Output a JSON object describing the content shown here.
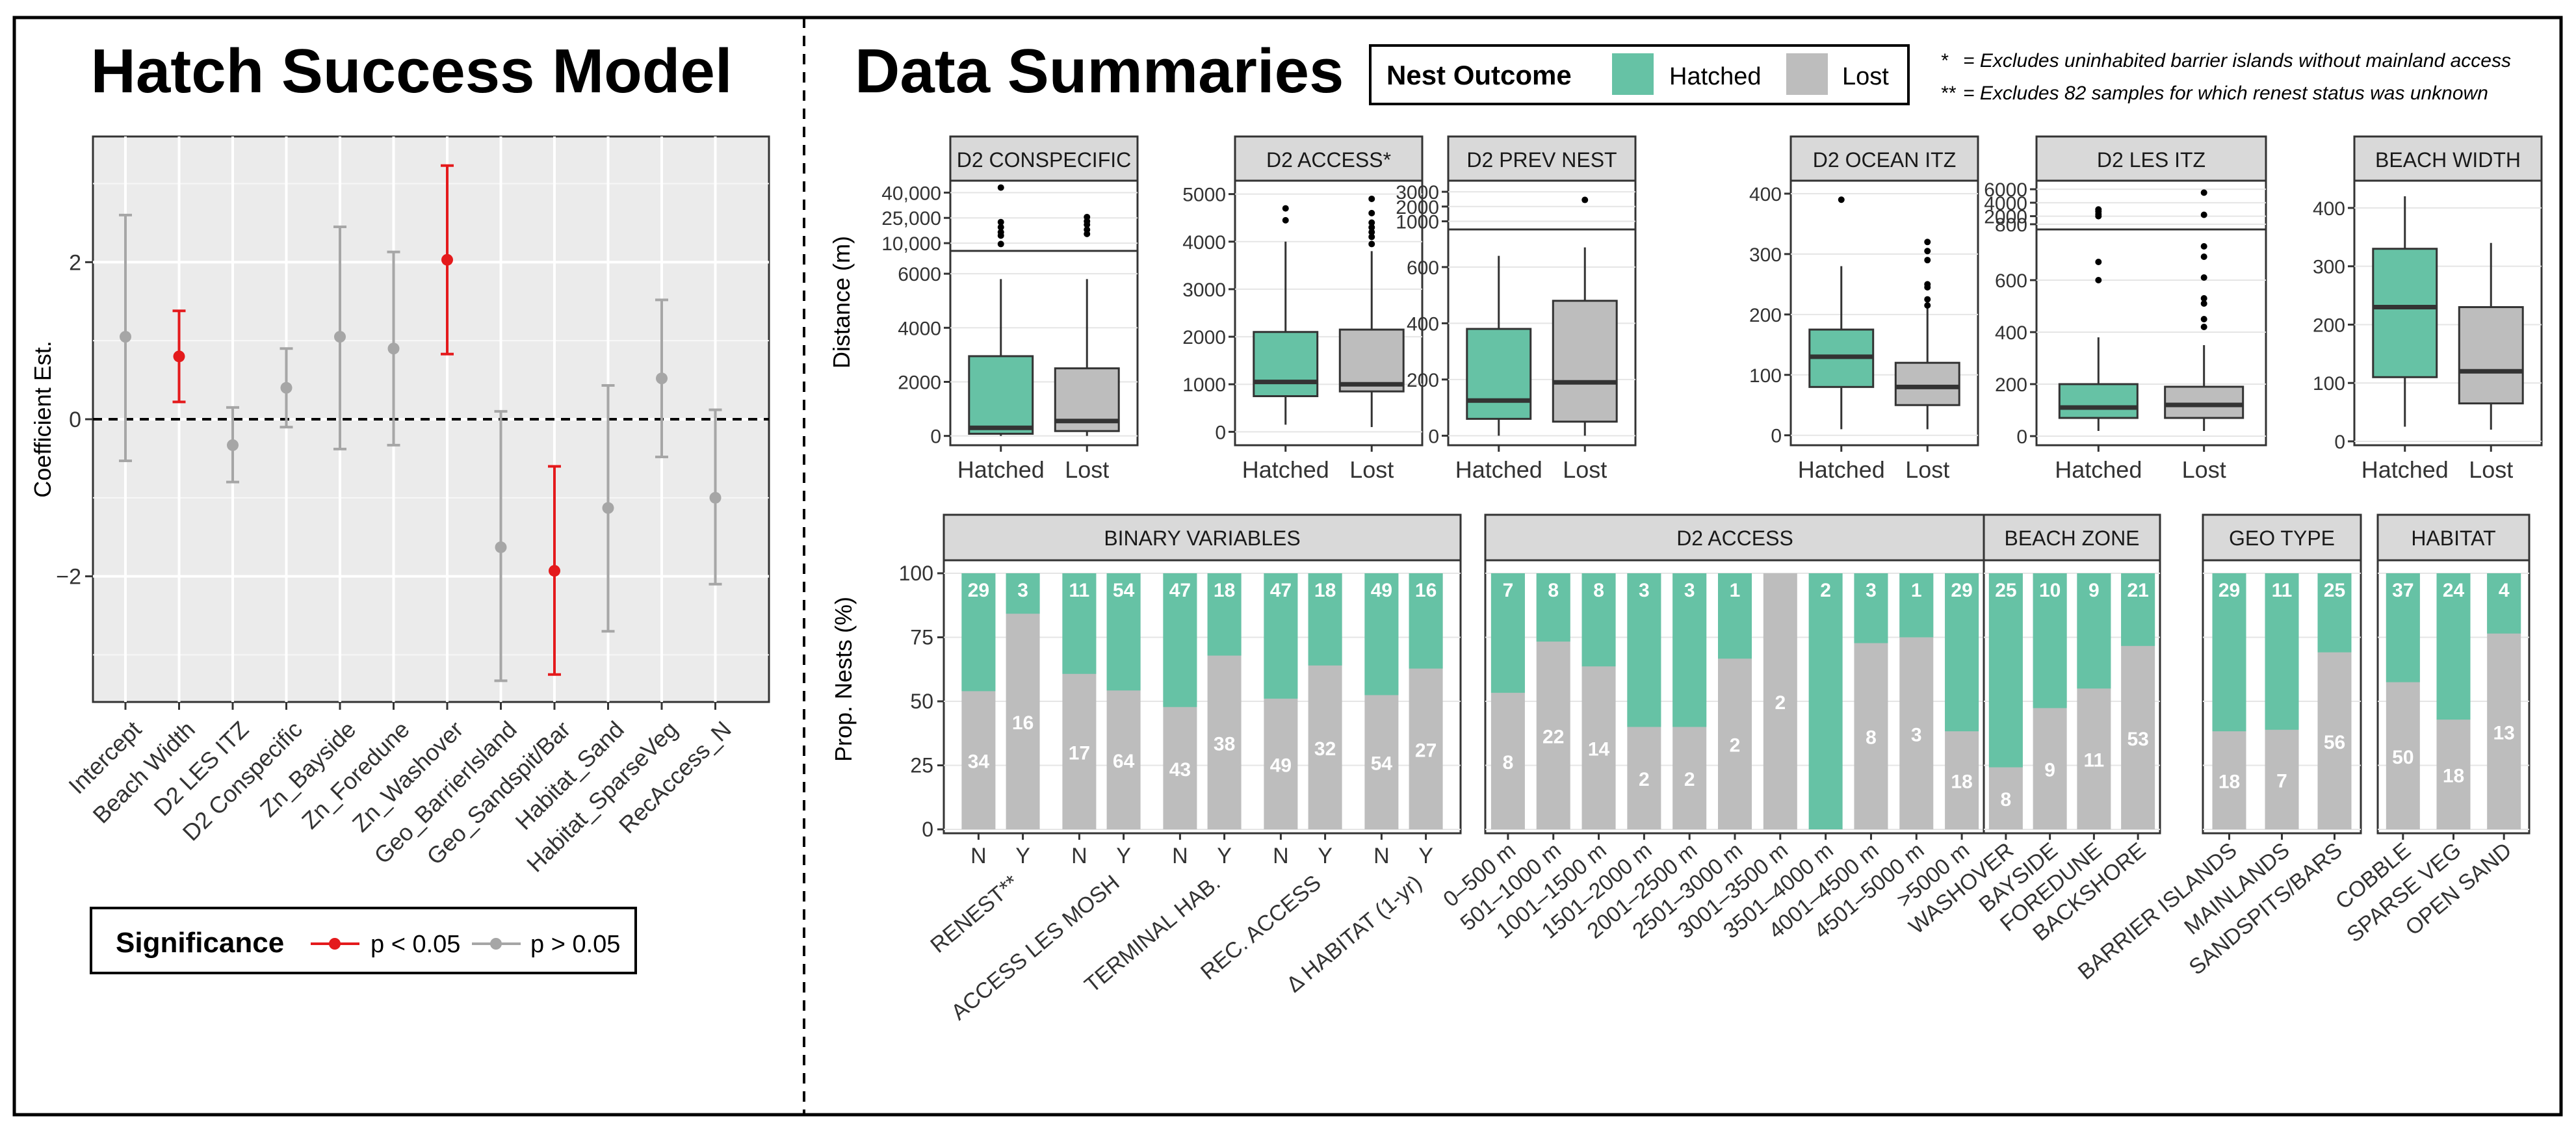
{
  "left_panel": {
    "title": "Hatch Success Model",
    "ylabel": "Coefficient Est.",
    "yticks": [
      "2",
      "0",
      "−2"
    ],
    "legend": {
      "title": "Significance",
      "sig_label": "p < 0.05",
      "nonsig_label": "p > 0.05"
    }
  },
  "right_panel": {
    "title": "Data Summaries",
    "legend": {
      "title": "Nest Outcome",
      "hatched": "Hatched",
      "lost": "Lost"
    },
    "footnotes": [
      {
        "mark": "*",
        "text": "= Excludes uninhabited barrier islands without mainland access"
      },
      {
        "mark": "**",
        "text": "= Excludes 82 samples for which renest status was unknown"
      }
    ],
    "box_ylabel": "Distance (m)",
    "bar_ylabel": "Prop. Nests (%)"
  },
  "colors": {
    "hatched": "#66c2a5",
    "lost": "#bdbdbd",
    "significant": "#e41a1c",
    "not_significant": "#a6a6a6",
    "panel_bg": "#ebebeb",
    "strip_bg": "#d9d9d9"
  },
  "chart_data": [
    {
      "type": "scatter",
      "subtype": "coefficient-errorbar",
      "title": "Hatch Success Model",
      "xlabel": "",
      "ylabel": "Coefficient Est.",
      "ylim": [
        -3.6,
        3.6
      ],
      "reference_line": {
        "y": 0,
        "style": "dashed"
      },
      "grid": true,
      "points": [
        {
          "label": "Intercept",
          "est": 1.05,
          "lo": -0.53,
          "hi": 2.6,
          "sig": false
        },
        {
          "label": "Beach Width",
          "est": 0.8,
          "lo": 0.22,
          "hi": 1.38,
          "sig": true
        },
        {
          "label": "D2 LES ITZ",
          "est": -0.33,
          "lo": -0.8,
          "hi": 0.15,
          "sig": false
        },
        {
          "label": "D2 Conspecific",
          "est": 0.4,
          "lo": -0.1,
          "hi": 0.9,
          "sig": false
        },
        {
          "label": "Zn_Bayside",
          "est": 1.05,
          "lo": -0.38,
          "hi": 2.45,
          "sig": false
        },
        {
          "label": "Zn_Foredune",
          "est": 0.9,
          "lo": -0.33,
          "hi": 2.13,
          "sig": false
        },
        {
          "label": "Zn_Washover",
          "est": 2.03,
          "lo": 0.83,
          "hi": 3.23,
          "sig": true
        },
        {
          "label": "Geo_BarrierIsland",
          "est": -1.63,
          "lo": -3.33,
          "hi": 0.1,
          "sig": false
        },
        {
          "label": "Geo_Sandspit/Bar",
          "est": -1.93,
          "lo": -3.25,
          "hi": -0.6,
          "sig": true
        },
        {
          "label": "Habitat_Sand",
          "est": -1.13,
          "lo": -2.7,
          "hi": 0.43,
          "sig": false
        },
        {
          "label": "Habitat_SparseVeg",
          "est": 0.52,
          "lo": -0.48,
          "hi": 1.52,
          "sig": false
        },
        {
          "label": "RecAccess_N",
          "est": -1.0,
          "lo": -2.1,
          "hi": 0.12,
          "sig": false
        }
      ]
    },
    {
      "type": "box",
      "title": "D2 CONSPECIFIC",
      "ylabel": "Distance (m)",
      "categories": [
        "Hatched",
        "Lost"
      ],
      "axis_break": true,
      "yticks_upper": [
        "40,000",
        "25,000",
        "10,000"
      ],
      "yticks_lower": [
        "6000",
        "4000",
        "2000",
        "0"
      ],
      "ylim_lower": [
        -200,
        6700
      ],
      "upper_ticks_values": [
        40000,
        25000,
        10000
      ],
      "upper_ylim": [
        8500,
        44000
      ],
      "boxes": [
        {
          "q1": 80,
          "median": 300,
          "q3": 2950,
          "whisker_lo": 0,
          "whisker_hi": 5800,
          "outliers_upper": [
            9500,
            14500,
            16500,
            19500,
            22500,
            43000
          ]
        },
        {
          "q1": 180,
          "median": 550,
          "q3": 2500,
          "whisker_lo": 0,
          "whisker_hi": 5800,
          "outliers_upper": [
            15500,
            18000,
            21000,
            23000,
            25500
          ]
        }
      ]
    },
    {
      "type": "box",
      "title": "D2 ACCESS*",
      "categories": [
        "Hatched",
        "Lost"
      ],
      "yticks": [
        "5000",
        "4000",
        "3000",
        "2000",
        "1000",
        "0"
      ],
      "ylim": [
        -200,
        5200
      ],
      "boxes": [
        {
          "q1": 750,
          "median": 1050,
          "q3": 2100,
          "whisker_lo": 150,
          "whisker_hi": 4000,
          "outliers": [
            4450,
            4700
          ]
        },
        {
          "q1": 850,
          "median": 1000,
          "q3": 2150,
          "whisker_lo": 100,
          "whisker_hi": 3800,
          "outliers": [
            3950,
            4100,
            4200,
            4300,
            4400,
            4600,
            4900
          ]
        }
      ]
    },
    {
      "type": "box",
      "title": "D2 PREV NEST",
      "categories": [
        "Hatched",
        "Lost"
      ],
      "axis_break": true,
      "yticks_upper": [
        "3000",
        "2000",
        "1000"
      ],
      "yticks_lower": [
        "600",
        "400",
        "200",
        "0"
      ],
      "ylim_lower": [
        -20,
        720
      ],
      "upper_ticks_values": [
        3000,
        2000,
        1000
      ],
      "upper_ylim": [
        800,
        3400
      ],
      "boxes": [
        {
          "q1": 60,
          "median": 125,
          "q3": 380,
          "whisker_lo": 0,
          "whisker_hi": 640,
          "outliers_upper": []
        },
        {
          "q1": 50,
          "median": 190,
          "q3": 480,
          "whisker_lo": 0,
          "whisker_hi": 670,
          "outliers_upper": [
            2450
          ]
        }
      ]
    },
    {
      "type": "box",
      "title": "D2 OCEAN ITZ",
      "categories": [
        "Hatched",
        "Lost"
      ],
      "yticks": [
        "400",
        "300",
        "200",
        "100",
        "0"
      ],
      "ylim": [
        -10,
        415
      ],
      "boxes": [
        {
          "q1": 80,
          "median": 130,
          "q3": 175,
          "whisker_lo": 10,
          "whisker_hi": 280,
          "outliers": [
            390
          ]
        },
        {
          "q1": 50,
          "median": 80,
          "q3": 120,
          "whisker_lo": 10,
          "whisker_hi": 210,
          "outliers": [
            215,
            225,
            245,
            250,
            290,
            305,
            320
          ]
        }
      ]
    },
    {
      "type": "box",
      "title": "D2 LES ITZ",
      "categories": [
        "Hatched",
        "Lost"
      ],
      "axis_break": true,
      "yticks_upper": [
        "6000",
        "4000",
        "2000",
        "800"
      ],
      "yticks_lower": [
        "600",
        "400",
        "200",
        "0"
      ],
      "ylim_lower": [
        -20,
        780
      ],
      "upper_ticks_values": [
        6000,
        4000,
        2000,
        800
      ],
      "upper_ylim": [
        800,
        6500
      ],
      "boxes": [
        {
          "q1": 70,
          "median": 110,
          "q3": 200,
          "whisker_lo": 20,
          "whisker_hi": 380,
          "outliers": [
            600,
            670
          ],
          "outliers_upper": [
            2000,
            2300,
            2700,
            3000
          ]
        },
        {
          "q1": 70,
          "median": 120,
          "q3": 190,
          "whisker_lo": 20,
          "whisker_hi": 350,
          "outliers": [
            420,
            450,
            510,
            530,
            610,
            690,
            730
          ],
          "outliers_upper": [
            2200,
            5500
          ]
        }
      ]
    },
    {
      "type": "box",
      "title": "BEACH WIDTH",
      "categories": [
        "Hatched",
        "Lost"
      ],
      "yticks": [
        "400",
        "300",
        "200",
        "100",
        "0"
      ],
      "ylim": [
        0,
        440
      ],
      "boxes": [
        {
          "q1": 110,
          "median": 230,
          "q3": 330,
          "whisker_lo": 25,
          "whisker_hi": 420,
          "outliers": []
        },
        {
          "q1": 65,
          "median": 120,
          "q3": 230,
          "whisker_lo": 20,
          "whisker_hi": 340,
          "outliers": []
        }
      ]
    },
    {
      "type": "bar",
      "subtype": "stacked-proportion",
      "ylabel": "Prop. Nests (%)",
      "yticks": [
        "100",
        "75",
        "50",
        "25",
        "0"
      ],
      "ylim": [
        0,
        100
      ],
      "facets": [
        {
          "title": "BINARY VARIABLES",
          "groups": [
            {
              "label": "RENEST**",
              "bars": [
                {
                  "x": "N",
                  "hatched": 29,
                  "lost": 34
                },
                {
                  "x": "Y",
                  "hatched": 3,
                  "lost": 16
                }
              ]
            },
            {
              "label": "ACCESS LES MOSH",
              "bars": [
                {
                  "x": "N",
                  "hatched": 11,
                  "lost": 17
                },
                {
                  "x": "Y",
                  "hatched": 54,
                  "lost": 64
                }
              ]
            },
            {
              "label": "TERMINAL HAB.",
              "bars": [
                {
                  "x": "N",
                  "hatched": 47,
                  "lost": 43
                },
                {
                  "x": "Y",
                  "hatched": 18,
                  "lost": 38
                }
              ]
            },
            {
              "label": "REC. ACCESS",
              "bars": [
                {
                  "x": "N",
                  "hatched": 47,
                  "lost": 49
                },
                {
                  "x": "Y",
                  "hatched": 18,
                  "lost": 32
                }
              ]
            },
            {
              "label": "Δ HABITAT (1-yr)",
              "bars": [
                {
                  "x": "N",
                  "hatched": 49,
                  "lost": 54
                },
                {
                  "x": "Y",
                  "hatched": 16,
                  "lost": 27
                }
              ]
            }
          ]
        },
        {
          "title": "D2 ACCESS",
          "bars": [
            {
              "x": "0–500 m",
              "hatched": 7,
              "lost": 8
            },
            {
              "x": "501–1000 m",
              "hatched": 8,
              "lost": 22
            },
            {
              "x": "1001–1500 m",
              "hatched": 8,
              "lost": 14
            },
            {
              "x": "1501–2000 m",
              "hatched": 3,
              "lost": 2
            },
            {
              "x": "2001–2500 m",
              "hatched": 3,
              "lost": 2
            },
            {
              "x": "2501–3000 m",
              "hatched": 1,
              "lost": 2
            },
            {
              "x": "3001–3500 m",
              "hatched": 0,
              "lost": 2
            },
            {
              "x": "3501–4000 m",
              "hatched": 2,
              "lost": 0
            },
            {
              "x": "4001–4500 m",
              "hatched": 3,
              "lost": 8
            },
            {
              "x": "4501–5000 m",
              "hatched": 1,
              "lost": 3
            },
            {
              "x": ">5000 m",
              "hatched": 29,
              "lost": 18
            }
          ]
        },
        {
          "title": "BEACH ZONE",
          "bars": [
            {
              "x": "WASHOVER",
              "hatched": 25,
              "lost": 8
            },
            {
              "x": "BAYSIDE",
              "hatched": 10,
              "lost": 9
            },
            {
              "x": "FOREDUNE",
              "hatched": 9,
              "lost": 11
            },
            {
              "x": "BACKSHORE",
              "hatched": 21,
              "lost": 53
            }
          ]
        },
        {
          "title": "GEO TYPE",
          "bars": [
            {
              "x": "BARRIER ISLANDS",
              "hatched": 29,
              "lost": 18
            },
            {
              "x": "MAINLANDS",
              "hatched": 11,
              "lost": 7
            },
            {
              "x": "SANDSPITS/BARS",
              "hatched": 25,
              "lost": 56
            }
          ]
        },
        {
          "title": "HABITAT",
          "bars": [
            {
              "x": "COBBLE",
              "hatched": 37,
              "lost": 50
            },
            {
              "x": "SPARSE VEG",
              "hatched": 24,
              "lost": 18
            },
            {
              "x": "OPEN SAND",
              "hatched": 4,
              "lost": 13
            }
          ]
        }
      ]
    }
  ]
}
